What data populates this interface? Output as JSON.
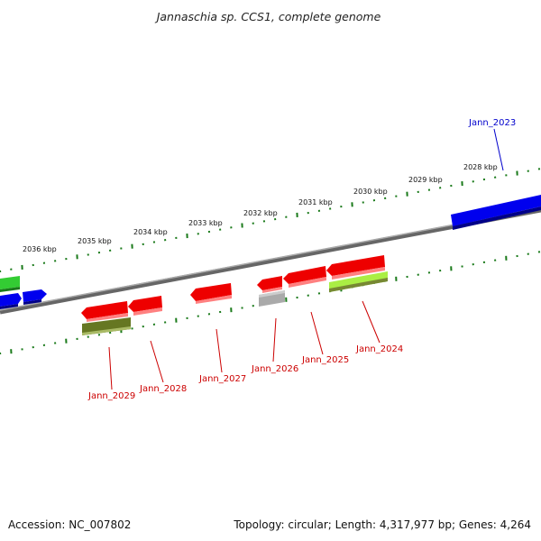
{
  "title": "Jannaschia sp. CCS1, complete genome",
  "footer": {
    "accession": "Accession: NC_007802",
    "summary": "Topology: circular; Length: 4,317,977 bp; Genes: 4,264"
  },
  "kbp_labels": [
    "2036 kbp",
    "2035 kbp",
    "2034 kbp",
    "2033 kbp",
    "2032 kbp",
    "2031 kbp",
    "2030 kbp",
    "2029 kbp",
    "2028 kbp"
  ],
  "gene_labels": [
    {
      "text": "Jann_2023",
      "color": "#0000cc"
    },
    {
      "text": "Jann_2024",
      "color": "#cc0000"
    },
    {
      "text": "Jann_2025",
      "color": "#cc0000"
    },
    {
      "text": "Jann_2026",
      "color": "#cc0000"
    },
    {
      "text": "Jann_2027",
      "color": "#cc0000"
    },
    {
      "text": "Jann_2028",
      "color": "#cc0000"
    },
    {
      "text": "Jann_2029",
      "color": "#cc0000"
    }
  ],
  "colors": {
    "backbone": "#777777",
    "tick": "#1a7a1a",
    "forward_gene": "#0000ee",
    "reverse_gene": "#ee0000",
    "rna_gene": "#55cc33",
    "olive_gene": "#667722",
    "lime_gene": "#aaee44",
    "gray_gene": "#aaaaaa"
  }
}
